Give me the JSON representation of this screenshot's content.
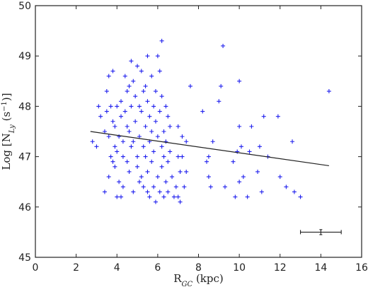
{
  "chart_data": {
    "type": "scatter",
    "xlabel": "R",
    "xlabel_sub": "GC",
    "xlabel_rest": " (kpc)",
    "ylabel_prefix": "Log [N",
    "ylabel_sub": "Ly",
    "ylabel_mid": " (s",
    "ylabel_sup": "−1",
    "ylabel_end": ")]",
    "xlim": [
      0,
      16
    ],
    "ylim": [
      45,
      50
    ],
    "xticks": [
      0,
      2,
      4,
      6,
      8,
      10,
      12,
      14,
      16
    ],
    "yticks": [
      45,
      46,
      47,
      48,
      49,
      50
    ],
    "marker_color": "#2020ee",
    "grid": false,
    "points": [
      [
        2.8,
        47.3
      ],
      [
        3.0,
        47.2
      ],
      [
        3.1,
        48.0
      ],
      [
        3.2,
        47.8
      ],
      [
        3.4,
        47.5
      ],
      [
        3.4,
        46.3
      ],
      [
        3.5,
        48.3
      ],
      [
        3.5,
        47.9
      ],
      [
        3.6,
        48.6
      ],
      [
        3.6,
        47.4
      ],
      [
        3.6,
        46.6
      ],
      [
        3.7,
        48.0
      ],
      [
        3.7,
        47.0
      ],
      [
        3.8,
        48.7
      ],
      [
        3.8,
        47.7
      ],
      [
        3.8,
        46.9
      ],
      [
        3.9,
        47.6
      ],
      [
        3.9,
        47.2
      ],
      [
        3.9,
        46.8
      ],
      [
        4.0,
        48.0
      ],
      [
        4.0,
        47.1
      ],
      [
        4.0,
        46.2
      ],
      [
        4.1,
        47.4
      ],
      [
        4.1,
        46.5
      ],
      [
        4.2,
        48.1
      ],
      [
        4.2,
        47.8
      ],
      [
        4.2,
        46.2
      ],
      [
        4.3,
        47.3
      ],
      [
        4.3,
        47.0
      ],
      [
        4.3,
        46.4
      ],
      [
        4.4,
        48.6
      ],
      [
        4.4,
        47.9
      ],
      [
        4.5,
        48.3
      ],
      [
        4.5,
        47.6
      ],
      [
        4.5,
        46.9
      ],
      [
        4.6,
        48.4
      ],
      [
        4.6,
        47.5
      ],
      [
        4.6,
        46.7
      ],
      [
        4.7,
        48.9
      ],
      [
        4.7,
        48.0
      ],
      [
        4.7,
        47.2
      ],
      [
        4.8,
        48.5
      ],
      [
        4.8,
        47.3
      ],
      [
        4.8,
        46.3
      ],
      [
        4.9,
        48.2
      ],
      [
        4.9,
        47.7
      ],
      [
        5.0,
        48.8
      ],
      [
        5.0,
        47.0
      ],
      [
        5.0,
        46.8
      ],
      [
        5.1,
        48.0
      ],
      [
        5.1,
        47.4
      ],
      [
        5.1,
        46.5
      ],
      [
        5.2,
        48.7
      ],
      [
        5.2,
        47.9
      ],
      [
        5.2,
        46.6
      ],
      [
        5.3,
        48.3
      ],
      [
        5.3,
        47.2
      ],
      [
        5.3,
        46.4
      ],
      [
        5.4,
        48.4
      ],
      [
        5.4,
        47.6
      ],
      [
        5.4,
        47.0
      ],
      [
        5.5,
        49.0
      ],
      [
        5.5,
        48.1
      ],
      [
        5.5,
        46.7
      ],
      [
        5.5,
        46.3
      ],
      [
        5.6,
        47.8
      ],
      [
        5.6,
        47.3
      ],
      [
        5.6,
        46.2
      ],
      [
        5.7,
        48.6
      ],
      [
        5.7,
        47.5
      ],
      [
        5.7,
        46.9
      ],
      [
        5.8,
        48.0
      ],
      [
        5.8,
        47.1
      ],
      [
        5.8,
        46.4
      ],
      [
        5.9,
        48.3
      ],
      [
        5.9,
        47.7
      ],
      [
        5.9,
        46.1
      ],
      [
        6.0,
        49.0
      ],
      [
        6.0,
        47.4
      ],
      [
        6.0,
        46.6
      ],
      [
        6.1,
        48.7
      ],
      [
        6.1,
        47.9
      ],
      [
        6.1,
        46.3
      ],
      [
        6.2,
        49.3
      ],
      [
        6.2,
        48.2
      ],
      [
        6.2,
        47.2
      ],
      [
        6.2,
        46.8
      ],
      [
        6.3,
        47.5
      ],
      [
        6.3,
        47.0
      ],
      [
        6.3,
        46.2
      ],
      [
        6.4,
        48.0
      ],
      [
        6.4,
        47.3
      ],
      [
        6.4,
        46.5
      ],
      [
        6.5,
        47.8
      ],
      [
        6.5,
        46.9
      ],
      [
        6.5,
        46.3
      ],
      [
        6.6,
        47.6
      ],
      [
        6.6,
        47.1
      ],
      [
        6.7,
        46.6
      ],
      [
        6.8,
        46.2
      ],
      [
        6.9,
        46.4
      ],
      [
        7.0,
        47.6
      ],
      [
        7.0,
        47.0
      ],
      [
        7.0,
        46.2
      ],
      [
        7.1,
        46.7
      ],
      [
        7.1,
        46.1
      ],
      [
        7.2,
        47.4
      ],
      [
        7.2,
        47.0
      ],
      [
        7.3,
        46.4
      ],
      [
        7.4,
        47.3
      ],
      [
        7.4,
        46.7
      ],
      [
        7.6,
        48.4
      ],
      [
        8.2,
        47.9
      ],
      [
        8.4,
        46.9
      ],
      [
        8.5,
        47.0
      ],
      [
        8.5,
        46.6
      ],
      [
        8.6,
        46.4
      ],
      [
        8.7,
        47.3
      ],
      [
        9.0,
        48.1
      ],
      [
        9.1,
        48.4
      ],
      [
        9.2,
        49.2
      ],
      [
        9.3,
        46.4
      ],
      [
        9.7,
        46.9
      ],
      [
        9.8,
        46.2
      ],
      [
        9.9,
        47.1
      ],
      [
        10.0,
        48.5
      ],
      [
        10.0,
        47.6
      ],
      [
        10.0,
        46.5
      ],
      [
        10.1,
        47.2
      ],
      [
        10.2,
        46.6
      ],
      [
        10.4,
        46.2
      ],
      [
        10.5,
        47.1
      ],
      [
        10.6,
        47.6
      ],
      [
        10.9,
        46.7
      ],
      [
        11.0,
        47.2
      ],
      [
        11.1,
        46.3
      ],
      [
        11.2,
        47.8
      ],
      [
        11.4,
        47.0
      ],
      [
        11.9,
        47.8
      ],
      [
        12.0,
        46.6
      ],
      [
        12.3,
        46.4
      ],
      [
        12.6,
        47.3
      ],
      [
        12.7,
        46.3
      ],
      [
        13.0,
        46.2
      ],
      [
        14.4,
        48.3
      ]
    ],
    "fit_line": {
      "x": [
        2.7,
        14.4
      ],
      "y": [
        47.5,
        46.82
      ]
    },
    "error_bar": {
      "x": 14.0,
      "y": 45.5,
      "xerr": 1.0,
      "yerr": 0.05
    }
  }
}
